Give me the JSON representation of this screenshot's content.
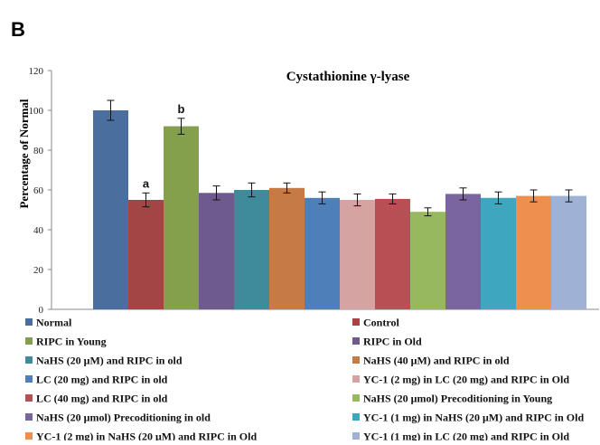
{
  "panel_label": "B",
  "chart_data": {
    "type": "bar",
    "title": "Cystathionine γ-lyase",
    "ylabel": "Percentage of Normal",
    "xlabel": "",
    "ylim": [
      0,
      120
    ],
    "yticks": [
      0,
      20,
      40,
      60,
      80,
      100,
      120
    ],
    "grid": false,
    "legend_position": "bottom",
    "series": [
      {
        "name": "Normal",
        "value": 100,
        "error": 5,
        "color": "#4a6f9f",
        "annotation": ""
      },
      {
        "name": "Control",
        "value": 55,
        "error": 3.5,
        "color": "#a44545",
        "annotation": "a"
      },
      {
        "name": "RIPC in Young",
        "value": 92,
        "error": 4,
        "color": "#84a04d",
        "annotation": "b"
      },
      {
        "name": "RIPC in Old",
        "value": 58.5,
        "error": 3.5,
        "color": "#6e5a8d",
        "annotation": ""
      },
      {
        "name": "NaHS (20 μM) and RIPC in old",
        "value": 60,
        "error": 3.5,
        "color": "#3f8a9b",
        "annotation": ""
      },
      {
        "name": "NaHS (40 μM) and RIPC in old",
        "value": 61,
        "error": 2.5,
        "color": "#c67a45",
        "annotation": ""
      },
      {
        "name": "LC (20 mg) and RIPC in old",
        "value": 56,
        "error": 3,
        "color": "#4f7fb8",
        "annotation": ""
      },
      {
        "name": "YC-1 (2 mg) in LC (20 mg) and RIPC in Old",
        "value": 55,
        "error": 3,
        "color": "#d6a3a3",
        "annotation": ""
      },
      {
        "name": "LC (40 mg) and RIPC in old",
        "value": 55.5,
        "error": 2.5,
        "color": "#b84f55",
        "annotation": ""
      },
      {
        "name": "NaHS  (20 μmol) Precoditioning in Young",
        "value": 49,
        "error": 2,
        "color": "#97b85f",
        "annotation": ""
      },
      {
        "name": "NaHS  (20 μmol) Precoditioning in old",
        "value": 58,
        "error": 3,
        "color": "#7b65a0",
        "annotation": ""
      },
      {
        "name": "YC-1 (1 mg) in NaHS (20 μM) and RIPC in Old",
        "value": 56,
        "error": 3,
        "color": "#3ea6be",
        "annotation": ""
      },
      {
        "name": "YC-1 (2 mg) in NaHS (20 μM) and RIPC in Old",
        "value": 57,
        "error": 3,
        "color": "#ef8f4f",
        "annotation": ""
      },
      {
        "name": "YC-1 (1 mg) in LC (20 mg) and RIPC in Old",
        "value": 57,
        "error": 3,
        "color": "#9fb1d4",
        "annotation": ""
      }
    ]
  }
}
